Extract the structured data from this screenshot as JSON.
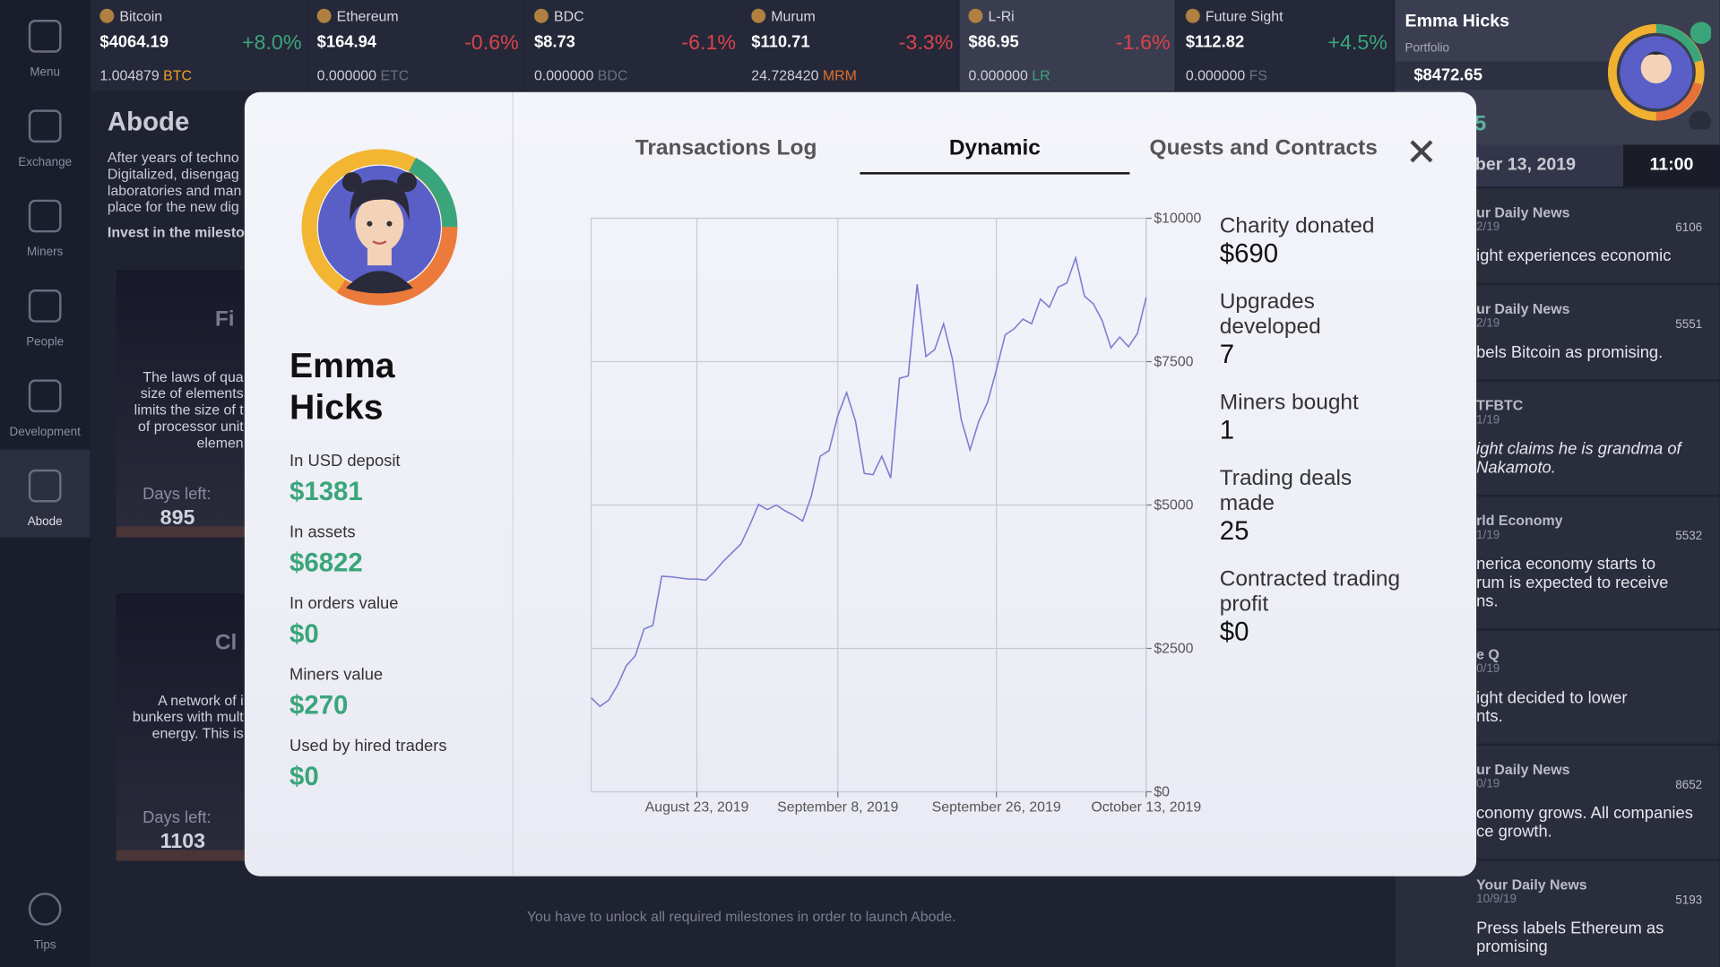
{
  "tickers": [
    {
      "name": "Bitcoin",
      "price": "$4064.19",
      "change": "+8.0%",
      "holding": "1.004879",
      "unit": "BTC",
      "unit_color": "#f0a020"
    },
    {
      "name": "Ethereum",
      "price": "$164.94",
      "change": "-0.6%",
      "holding": "0.000000",
      "unit": "ETC",
      "unit_color": "#6b6e80"
    },
    {
      "name": "BDC",
      "price": "$8.73",
      "change": "-6.1%",
      "holding": "0.000000",
      "unit": "BDC",
      "unit_color": "#6b6e80"
    },
    {
      "name": "Murum",
      "price": "$110.71",
      "change": "-3.3%",
      "holding": "24.728420",
      "unit": "MRM",
      "unit_color": "#e0702a"
    },
    {
      "name": "L-Ri",
      "price": "$86.95",
      "change": "-1.6%",
      "holding": "0.000000",
      "unit": "LR",
      "unit_color": "#3aa57a"
    },
    {
      "name": "Future Sight",
      "price": "$112.82",
      "change": "+4.5%",
      "holding": "0.000000",
      "unit": "FS",
      "unit_color": "#6b6e80"
    }
  ],
  "sidebar": [
    "Menu",
    "Exchange",
    "Miners",
    "People",
    "Development",
    "Abode",
    "Tips"
  ],
  "abode": {
    "title": "Abode",
    "description": [
      "After years of techno",
      "Digitalized, disengag",
      "laboratories and man",
      "place for the new dig"
    ],
    "invest": "Invest in the milesto",
    "cards": [
      {
        "title": "Fi",
        "text": [
          "The laws of qua",
          "size of elements",
          "limits the size of t",
          "of processor unit",
          "elemen"
        ],
        "days_label": "Days left:",
        "days": "895"
      },
      {
        "title": "Cl",
        "text": [
          "A network of i",
          "bunkers with mult",
          "energy. This is"
        ],
        "days_label": "Days left:",
        "days": "1103"
      }
    ],
    "footer": "You have to unlock all required milestones in order to launch Abode."
  },
  "portfolio": {
    "name": "Emma Hicks",
    "label": "Portfolio",
    "value": "$8472.65",
    "partial": "5",
    "date": "ber 13, 2019",
    "time": "11:00"
  },
  "news": [
    {
      "source": "ur Daily News",
      "date": "2/19",
      "likes": "6106",
      "text": [
        "ight experiences economic"
      ],
      "italic": false
    },
    {
      "source": "ur Daily News",
      "date": "2/19",
      "likes": "5551",
      "text": [
        "bels Bitcoin as promising."
      ],
      "italic": false
    },
    {
      "source": "TFBTC",
      "date": "1/19",
      "text": [
        "ight claims he is grandma of",
        "Nakamoto."
      ],
      "italic": true
    },
    {
      "source": "rld Economy",
      "date": "1/19",
      "likes": "5532",
      "text": [
        "nerica economy starts to",
        "rum is expected to receive",
        "ns."
      ],
      "italic": false
    },
    {
      "source": "e Q",
      "date": "0/19",
      "text": [
        "ight decided to lower",
        "nts."
      ],
      "italic": false
    },
    {
      "source": "ur Daily News",
      "date": "0/19",
      "likes": "8652",
      "text": [
        "conomy grows. All companies",
        "ce growth."
      ],
      "italic": false
    },
    {
      "source": "Your Daily News",
      "date": "10/9/19",
      "likes": "5193",
      "text": [
        "Press labels Ethereum as promising"
      ],
      "italic": false
    }
  ],
  "profile": {
    "name": "Emma Hicks",
    "stats": [
      {
        "label": "In USD deposit",
        "value": "$1381"
      },
      {
        "label": "In assets",
        "value": "$6822"
      },
      {
        "label": "In orders value",
        "value": "$0"
      },
      {
        "label": "Miners value",
        "value": "$270"
      },
      {
        "label": "Used by hired traders",
        "value": "$0"
      }
    ]
  },
  "tabs": [
    "Transactions Log",
    "Dynamic",
    "Quests and Contracts"
  ],
  "active_tab": 1,
  "summary": [
    {
      "label": [
        "Charity donated"
      ],
      "value": "$690"
    },
    {
      "label": [
        "Upgrades",
        "developed"
      ],
      "value": "7"
    },
    {
      "label": [
        "Miners bought"
      ],
      "value": "1"
    },
    {
      "label": [
        "Trading deals",
        "made"
      ],
      "value": "25"
    },
    {
      "label": [
        "Contracted trading",
        "profit"
      ],
      "value": "$0"
    }
  ],
  "chart_data": {
    "type": "line",
    "color": "#7b7fd1",
    "grid": true,
    "x": [
      "2019-08-11",
      "2019-08-12",
      "2019-08-13",
      "2019-08-14",
      "2019-08-15",
      "2019-08-16",
      "2019-08-17",
      "2019-08-18",
      "2019-08-19",
      "2019-08-20",
      "2019-08-21",
      "2019-08-22",
      "2019-08-23",
      "2019-08-24",
      "2019-08-25",
      "2019-08-26",
      "2019-08-27",
      "2019-08-28",
      "2019-08-29",
      "2019-08-30",
      "2019-08-31",
      "2019-09-01",
      "2019-09-02",
      "2019-09-03",
      "2019-09-04",
      "2019-09-05",
      "2019-09-06",
      "2019-09-07",
      "2019-09-08",
      "2019-09-09",
      "2019-09-10",
      "2019-09-11",
      "2019-09-12",
      "2019-09-13",
      "2019-09-14",
      "2019-09-15",
      "2019-09-16",
      "2019-09-17",
      "2019-09-18",
      "2019-09-19",
      "2019-09-20",
      "2019-09-21",
      "2019-09-22",
      "2019-09-23",
      "2019-09-24",
      "2019-09-25",
      "2019-09-26",
      "2019-09-27",
      "2019-09-28",
      "2019-09-29",
      "2019-09-30",
      "2019-10-01",
      "2019-10-02",
      "2019-10-03",
      "2019-10-04",
      "2019-10-05",
      "2019-10-06",
      "2019-10-07",
      "2019-10-08",
      "2019-10-09",
      "2019-10-10",
      "2019-10-11",
      "2019-10-12",
      "2019-10-13"
    ],
    "values": [
      1640,
      1490,
      1600,
      1860,
      2200,
      2370,
      2840,
      2900,
      3760,
      3750,
      3730,
      3710,
      3710,
      3690,
      3840,
      4020,
      4170,
      4320,
      4650,
      5010,
      4920,
      5000,
      4900,
      4820,
      4720,
      5160,
      5850,
      5950,
      6560,
      6960,
      6460,
      5550,
      5530,
      5850,
      5470,
      7210,
      7250,
      8850,
      7590,
      7710,
      8160,
      7550,
      6500,
      5960,
      6460,
      6790,
      7360,
      7970,
      8070,
      8240,
      8160,
      8590,
      8450,
      8800,
      8870,
      9310,
      8640,
      8510,
      8220,
      7740,
      7930,
      7760,
      7990,
      8620
    ],
    "xlim": [
      "2019-08-11",
      "2019-10-13"
    ],
    "xticks": [
      {
        "value": "2019-08-23",
        "label": "August 23, 2019"
      },
      {
        "value": "2019-09-08",
        "label": "September 8, 2019"
      },
      {
        "value": "2019-09-26",
        "label": "September 26, 2019"
      },
      {
        "value": "2019-10-13",
        "label": "October 13, 2019"
      }
    ],
    "ylim": [
      0,
      10000
    ],
    "yticks": [
      {
        "value": 0,
        "label": "$0"
      },
      {
        "value": 2500,
        "label": "$2500"
      },
      {
        "value": 5000,
        "label": "$5000"
      },
      {
        "value": 7500,
        "label": "$7500"
      },
      {
        "value": 10000,
        "label": "$10000"
      }
    ]
  }
}
